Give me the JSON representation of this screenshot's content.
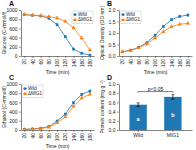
{
  "chart_data": [
    {
      "type": "line",
      "title": "A",
      "x": [
        20,
        40,
        60,
        80,
        100,
        120,
        140,
        160,
        180
      ],
      "xlabel": "Time (min)",
      "ylabel": "Glucose (C-mmol/l)",
      "xlim": [
        12,
        190
      ],
      "xticks": [
        20,
        40,
        60,
        80,
        100,
        120,
        140,
        160,
        180
      ],
      "ylim": [
        0,
        1000
      ],
      "yticks": [
        0,
        200,
        400,
        600,
        800,
        1000
      ],
      "legend": "upper right",
      "series": [
        {
          "name": "Wild",
          "marker": "square",
          "line_style": "solid",
          "values": [
            900,
            885,
            870,
            820,
            680,
            420,
            150,
            60,
            20
          ],
          "errors": [
            20,
            18,
            18,
            22,
            28,
            25,
            20,
            15,
            10
          ]
        },
        {
          "name": "ΔMIG1",
          "marker": "triangle",
          "line_style": "solid",
          "values": [
            900,
            888,
            878,
            858,
            825,
            755,
            610,
            390,
            130
          ],
          "errors": [
            20,
            18,
            18,
            18,
            22,
            22,
            28,
            22,
            15
          ]
        }
      ]
    },
    {
      "type": "line",
      "title": "B",
      "x": [
        20,
        40,
        60,
        80,
        100,
        120,
        140,
        160,
        180
      ],
      "xlabel": "Time (min)",
      "ylabel": "Optical Density (OD nm)",
      "xlim": [
        12,
        190
      ],
      "xticks": [
        20,
        40,
        60,
        80,
        100,
        120,
        140,
        160,
        180
      ],
      "ylim": [
        0,
        2.0
      ],
      "yticks": [
        {
          "value": 0,
          "label": "0.0"
        },
        0.5,
        {
          "value": 1,
          "label": "1.0"
        },
        1.5,
        {
          "value": 2,
          "label": "2.0"
        }
      ],
      "legend": "upper left",
      "series": [
        {
          "name": "Wild",
          "marker": "square",
          "line_style": "solid",
          "values": [
            0.18,
            0.25,
            0.38,
            0.58,
            0.9,
            1.28,
            1.58,
            1.72,
            1.78
          ],
          "errors": [
            0.015,
            0.015,
            0.02,
            0.03,
            0.04,
            0.05,
            0.05,
            0.05,
            0.05
          ]
        },
        {
          "name": "ΔMIG1",
          "marker": "triangle",
          "line_style": "solid",
          "values": [
            0.18,
            0.24,
            0.35,
            0.52,
            0.78,
            1.05,
            1.28,
            1.38,
            1.42
          ],
          "errors": [
            0.015,
            0.015,
            0.02,
            0.03,
            0.04,
            0.04,
            0.05,
            0.05,
            0.05
          ]
        }
      ]
    },
    {
      "type": "line",
      "title": "C",
      "x": [
        20,
        40,
        60,
        80,
        100,
        120,
        140,
        160,
        180
      ],
      "xlabel": "Time (min)",
      "ylabel": "Ethanol (C-mmol/l)",
      "xlim": [
        12,
        190
      ],
      "xticks": [
        20,
        40,
        60,
        80,
        100,
        120,
        140,
        160,
        180
      ],
      "ylim": [
        0,
        1000
      ],
      "yticks": [
        0,
        200,
        400,
        600,
        800,
        1000
      ],
      "legend": "upper left",
      "series": [
        {
          "name": "Wild",
          "marker": "square",
          "line_style": "solid",
          "values": [
            15,
            22,
            38,
            75,
            195,
            345,
            595,
            775,
            845
          ],
          "errors": [
            4,
            4,
            6,
            8,
            12,
            16,
            20,
            20,
            20
          ]
        },
        {
          "name": "ΔMIG1",
          "marker": "triangle",
          "line_style": "solid",
          "values": [
            15,
            20,
            32,
            60,
            155,
            285,
            515,
            695,
            775
          ],
          "errors": [
            4,
            4,
            6,
            8,
            10,
            14,
            18,
            18,
            18
          ]
        }
      ]
    },
    {
      "type": "bar",
      "title": "D",
      "categories": [
        "Wild",
        "MIG1"
      ],
      "values": [
        0.55,
        0.72
      ],
      "errors": [
        0.04,
        0.05
      ],
      "ylabel": "Protein content (mg g⁻¹)",
      "ylim": [
        0,
        1.0
      ],
      "yticks": [
        {
          "value": 0,
          "label": "0.0"
        },
        0.2,
        0.4,
        0.6,
        0.8,
        {
          "value": 1,
          "label": "1.0"
        }
      ],
      "annotations": [
        {
          "text": "p<0.05",
          "categories": [
            "Wild",
            "MIG1"
          ]
        },
        {
          "text": "a",
          "category": "Wild"
        },
        {
          "text": "b",
          "category": "MIG1"
        }
      ]
    }
  ]
}
